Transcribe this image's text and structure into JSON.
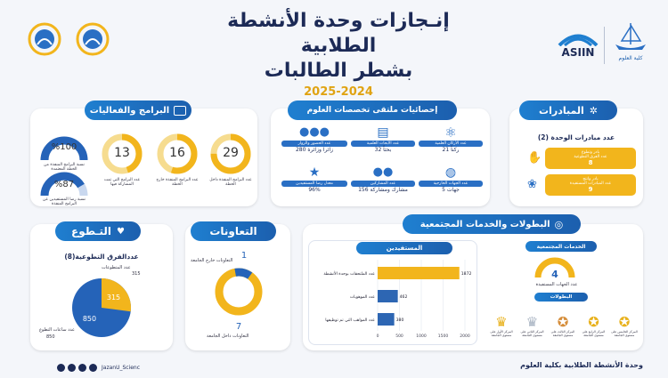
{
  "header": {
    "title_line1": "إنـجازات وحدة الأنشطة الطلابية",
    "title_line2": "بشطر الطالبات",
    "year": "2025-2024",
    "asiin": "ASIIN",
    "college": "كلية العلوم"
  },
  "programs": {
    "title": "البرامج والفعاليات",
    "rings": [
      {
        "value": "29",
        "label": "عدد البرامج المنفذة داخل الخطة",
        "fraction": 0.75
      },
      {
        "value": "16",
        "label": "عدد البرامج المنفذة خارج الخطة",
        "fraction": 0.55
      },
      {
        "value": "13",
        "label": "عدد البرامج التي تمت المشاركة فيها",
        "fraction": 0.45
      }
    ],
    "pct": [
      {
        "value": "%100",
        "label": "نسبة البرامج المنفذة من الخطة المعتمدة",
        "fraction": 1.0
      },
      {
        "value": "%87",
        "label": "نسبة رضا المستفيدين عن البرامج المنفذة",
        "fraction": 0.87
      }
    ]
  },
  "stats": {
    "title": "إحصائيات ملتقى تخصصات العلوم",
    "items": [
      {
        "label": "عدد الأركان العلمية",
        "value": "21 ركناً",
        "icon": "atom-icon"
      },
      {
        "label": "عدد الأبحاث العلمية",
        "value": "32 بحثاً",
        "icon": "research-icon"
      },
      {
        "label": "عدد الحضور والزوار",
        "value": "280 زائرا وزائرة",
        "icon": "visitors-icon"
      },
      {
        "label": "عدد الجهات الخارجية",
        "value": "5 جهات",
        "icon": "globe-icon"
      },
      {
        "label": "عدد المشاركين",
        "value": "156 مشارك ومشاركة",
        "icon": "participants-icon"
      },
      {
        "label": "معدل رضا المستفيدين",
        "value": "96%",
        "icon": "star-icon"
      }
    ]
  },
  "initiatives": {
    "title": "المبادرات",
    "count_label": "عدد مبادرات الوحدة (2)",
    "items": [
      {
        "label": "بادر وتطوع",
        "sub": "عدد الفرق التطوعية",
        "value": "8"
      },
      {
        "label": "بادر وانتج",
        "sub": "عدد المبادرات المستفيدة",
        "value": "9"
      }
    ]
  },
  "volunteer": {
    "title": "التـطوع",
    "teams": "عددالفرق التطوعية(8)",
    "female_label": "عدد المتطوعات",
    "female_value": "315",
    "hours_label": "عدد ساعات التطوع",
    "hours_value": "850",
    "pie": {
      "values": [
        315,
        850
      ],
      "colors": [
        "#f2b51c",
        "#2563b8"
      ]
    }
  },
  "cooperation": {
    "title": "التعاونات",
    "outside_label": "التعاونات خارج الجامعة",
    "outside_value": "1",
    "inside_label": "التعاونات داخل الجامعة",
    "inside_value": "7"
  },
  "championships": {
    "title": "البطولات والخدمات المجتمعية",
    "beneficiaries_title": "المستفيدين",
    "community_title": "الخدمات المجتمعية",
    "community_value": "4",
    "community_label": "عدد الجهات المستفيدة",
    "trophies_title": "البطولات",
    "trophies": [
      {
        "label": "المركز الأول على مستوى الجامعة",
        "color": "#e8b11c"
      },
      {
        "label": "المركز الثاني على مستوى الجامعة",
        "color": "#a7b2c1"
      },
      {
        "label": "المركز الثالث على مستوى الجامعة",
        "color": "#d58d3a"
      },
      {
        "label": "المركز الرابع على مستوى الجامعة",
        "color": "#e8b11c"
      },
      {
        "label": "المركز الخامس على مستوى الجامعة",
        "color": "#e8b11c"
      }
    ]
  },
  "chart_data": {
    "type": "bar",
    "orientation": "horizontal",
    "categories": [
      "عدد الملتحقات بوحدة الأنشطة",
      "عدد الموهوبات",
      "عدد المواهب التي تم توظيفها"
    ],
    "values": [
      1872,
      462,
      380
    ],
    "ticks": [
      "0",
      "500",
      "1000",
      "1500",
      "2000"
    ],
    "xlim": [
      0,
      2000
    ],
    "colors": [
      "#f2b51c",
      "#2d66b3",
      "#2d66b3"
    ]
  },
  "footer": {
    "handle": "JazanU_Scienc",
    "unit": "وحدة الأنشطة الطلابية بكلية العلوم"
  },
  "colors": {
    "blue": "#1c5fae",
    "gold": "#f2b51c",
    "navy": "#1c2a56"
  }
}
